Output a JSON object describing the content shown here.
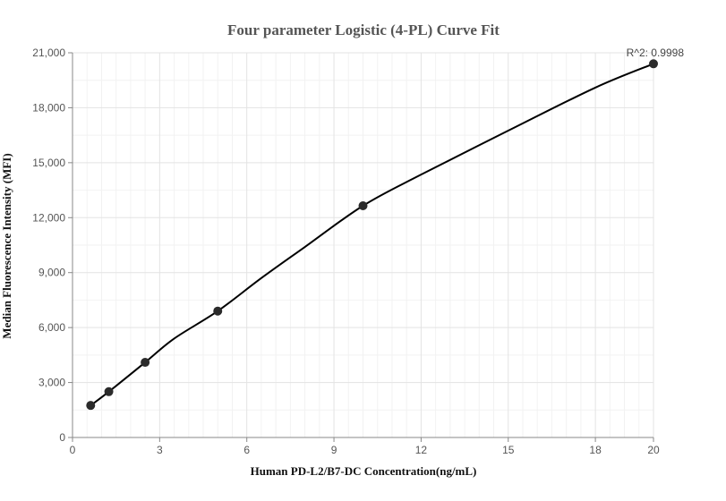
{
  "chart_data": {
    "type": "scatter",
    "title": "Four parameter Logistic (4-PL) Curve Fit",
    "xlabel": "Human PD-L2/B7-DC Concentration(ng/mL)",
    "ylabel": "Median Fluorescence Intensity (MFI)",
    "xlim": [
      0,
      20
    ],
    "ylim": [
      0,
      21000
    ],
    "x_ticks": [
      0,
      3,
      6,
      9,
      12,
      15,
      18,
      20
    ],
    "x_tick_labels": [
      "0",
      "3",
      "6",
      "9",
      "12",
      "15",
      "18",
      "20"
    ],
    "y_ticks": [
      0,
      3000,
      6000,
      9000,
      12000,
      15000,
      18000,
      21000
    ],
    "y_tick_labels": [
      "0",
      "3,000",
      "6,000",
      "9,000",
      "12,000",
      "15,000",
      "18,000",
      "21,000"
    ],
    "grid": true,
    "series": [
      {
        "type": "scatter",
        "x": [
          0.625,
          1.25,
          2.5,
          5,
          10,
          20
        ],
        "y": [
          1750,
          2500,
          4100,
          6900,
          12650,
          20400
        ]
      },
      {
        "type": "line",
        "x": [
          0.625,
          1.25,
          2.5,
          3.5,
          5,
          6.5,
          8,
          10,
          12,
          15,
          18,
          20
        ],
        "y": [
          1750,
          2500,
          4100,
          5400,
          6900,
          8700,
          10400,
          12650,
          14350,
          16750,
          19100,
          20400
        ]
      }
    ],
    "annotation": "R^2: 0.9998"
  }
}
